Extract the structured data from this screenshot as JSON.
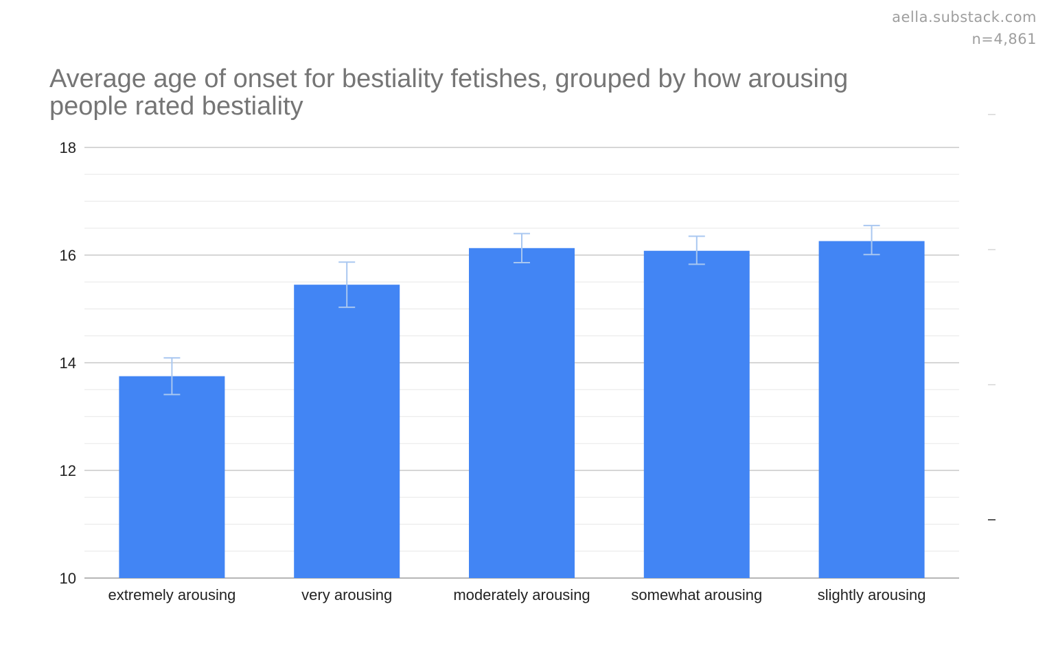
{
  "watermark": {
    "site": "aella.substack.com",
    "sample": "n=4,861"
  },
  "chart_data": {
    "type": "bar",
    "title_lines": [
      "Average age of onset for bestiality fetishes, grouped by how arousing",
      "people rated bestiality"
    ],
    "xlabel": "",
    "ylabel": "",
    "categories": [
      "extremely arousing",
      "very arousing",
      "moderately arousing",
      "somewhat arousing",
      "slightly arousing"
    ],
    "values": [
      13.75,
      15.45,
      16.13,
      16.08,
      16.26
    ],
    "error_bars": {
      "low": [
        13.41,
        15.03,
        15.86,
        15.83,
        16.01
      ],
      "high": [
        14.09,
        15.87,
        16.4,
        16.35,
        16.55
      ]
    },
    "ylim": [
      10,
      18
    ],
    "yticks": [
      10,
      12,
      14,
      16,
      18
    ],
    "minor_step": 0.5,
    "grid": true,
    "legend": "none",
    "colors": {
      "bar": "#4285f4",
      "error_bar": "#a9c7f0",
      "major_grid": "#c9c9c9",
      "minor_grid": "#ececec"
    }
  }
}
